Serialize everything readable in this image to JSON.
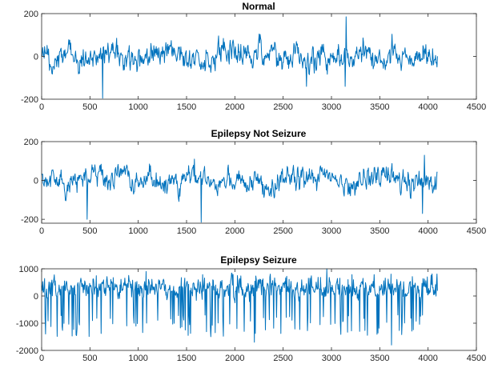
{
  "chart_data": [
    {
      "type": "line",
      "title": "Normal",
      "xlabel": "",
      "ylabel": "",
      "xlim": [
        0,
        4500
      ],
      "ylim": [
        -200,
        200
      ],
      "x_ticks": [
        0,
        500,
        1000,
        1500,
        2000,
        2500,
        3000,
        3500,
        4000,
        4500
      ],
      "y_ticks": [
        -200,
        0,
        200
      ],
      "grid": false,
      "color": "#0072BD",
      "series": [
        {
          "x_start": 1,
          "x_end": 4097,
          "n_points": 4097,
          "mean": 0,
          "amplitude_typical": 75,
          "extremes": [
            [
              630,
              -195
            ],
            [
              3150,
              185
            ],
            [
              3140,
              -140
            ],
            [
              2740,
              -140
            ]
          ]
        }
      ]
    },
    {
      "type": "line",
      "title": "Epilepsy Not Seizure",
      "xlabel": "",
      "ylabel": "",
      "xlim": [
        0,
        4500
      ],
      "ylim": [
        -220,
        200
      ],
      "x_ticks": [
        0,
        500,
        1000,
        1500,
        2000,
        2500,
        3000,
        3500,
        4000,
        4500
      ],
      "y_ticks": [
        -200,
        0,
        200
      ],
      "grid": false,
      "color": "#0072BD",
      "series": [
        {
          "x_start": 1,
          "x_end": 4097,
          "n_points": 4097,
          "mean": 0,
          "amplitude_typical": 70,
          "extremes": [
            [
              470,
              -200
            ],
            [
              1650,
              -215
            ],
            [
              1580,
              110
            ],
            [
              3960,
              130
            ],
            [
              3940,
              -170
            ]
          ]
        }
      ]
    },
    {
      "type": "line",
      "title": "Epilepsy Seizure",
      "xlabel": "",
      "ylabel": "",
      "xlim": [
        0,
        4500
      ],
      "ylim": [
        -2000,
        1000
      ],
      "x_ticks": [
        0,
        500,
        1000,
        1500,
        2000,
        2500,
        3000,
        3500,
        4000,
        4500
      ],
      "y_ticks": [
        -2000,
        -1000,
        0,
        1000
      ],
      "grid": false,
      "color": "#0072BD",
      "series": [
        {
          "x_start": 1,
          "x_end": 4097,
          "n_points": 4097,
          "mean": 0,
          "amplitude_typical": 500,
          "extremes": [
            [
              2950,
              1000
            ],
            [
              3620,
              -1800
            ],
            [
              2200,
              -1700
            ],
            [
              1080,
              900
            ]
          ]
        }
      ]
    }
  ]
}
